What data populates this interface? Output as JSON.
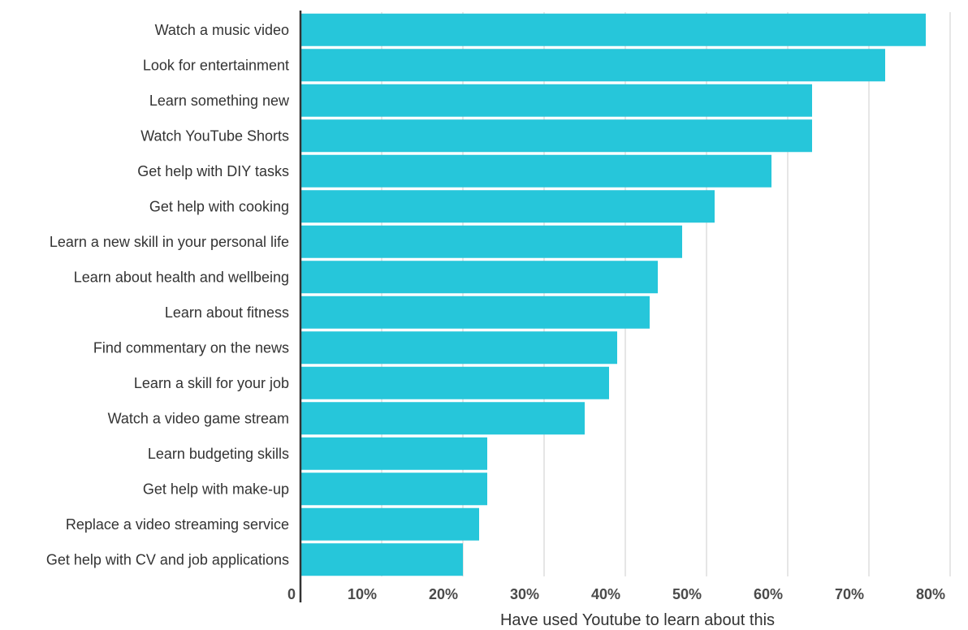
{
  "chart_data": {
    "type": "bar",
    "orientation": "horizontal",
    "title": "",
    "xlabel": "Have used Youtube to learn about this",
    "ylabel": "",
    "xlim": [
      0,
      80
    ],
    "grid": true,
    "legend": "none",
    "bar_color": "#26c6da",
    "axis_color": "#333333",
    "grid_color": "#dddddd",
    "ticks": [
      {
        "value": 0,
        "label": "0"
      },
      {
        "value": 10,
        "label": "10%"
      },
      {
        "value": 20,
        "label": "20%"
      },
      {
        "value": 30,
        "label": "30%"
      },
      {
        "value": 40,
        "label": "40%"
      },
      {
        "value": 50,
        "label": "50%"
      },
      {
        "value": 60,
        "label": "60%"
      },
      {
        "value": 70,
        "label": "70%"
      },
      {
        "value": 80,
        "label": "80%"
      }
    ],
    "categories": [
      "Watch a music video",
      "Look for entertainment",
      "Learn something new",
      "Watch YouTube Shorts",
      "Get help with DIY tasks",
      "Get help with cooking",
      "Learn a new skill in your personal life",
      "Learn about health and wellbeing",
      "Learn about fitness",
      "Find commentary on the news",
      "Learn a skill for your job",
      "Watch a video game stream",
      "Learn budgeting skills",
      "Get help with make-up",
      "Replace a video streaming service",
      "Get help with CV and job applications"
    ],
    "values": [
      77,
      72,
      63,
      63,
      58,
      51,
      47,
      44,
      43,
      39,
      38,
      35,
      23,
      23,
      22,
      20
    ]
  }
}
